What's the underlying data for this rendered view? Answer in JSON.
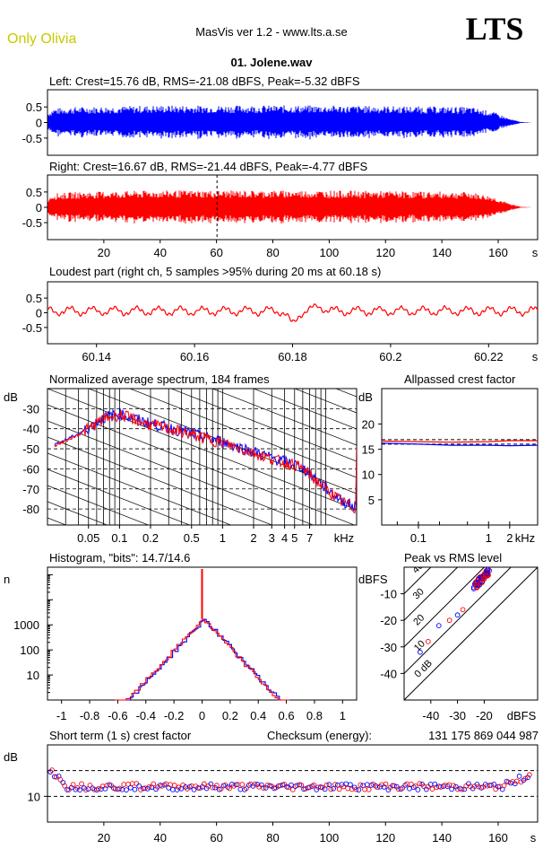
{
  "header": {
    "brand": "Only Olivia",
    "app_title": "MasVis ver 1.2 - www.lts.a.se",
    "logo": "LTS",
    "filename": "01. Jolene.wav"
  },
  "colors": {
    "left": "#0000ff",
    "right": "#ff0000"
  },
  "chart_data": [
    {
      "name": "left-waveform",
      "type": "area",
      "title": "Left: Crest=15.76 dB, RMS=-21.08 dBFS, Peak=-5.32 dBFS",
      "yticks": [
        "0.5",
        "0",
        "-0.5"
      ],
      "ylim": [
        -1,
        1
      ],
      "envelope": [
        [
          0,
          0.3
        ],
        [
          2,
          0.45
        ],
        [
          10,
          0.5
        ],
        [
          40,
          0.55
        ],
        [
          100,
          0.55
        ],
        [
          150,
          0.5
        ],
        [
          158,
          0.35
        ],
        [
          164,
          0.12
        ],
        [
          168,
          0.02
        ],
        [
          172,
          0.0
        ]
      ],
      "xlim": [
        0,
        174
      ]
    },
    {
      "name": "right-waveform",
      "type": "area",
      "title": "Right: Crest=16.67 dB, RMS=-21.44 dBFS, Peak=-4.77 dBFS",
      "yticks": [
        "0.5",
        "0",
        "-0.5"
      ],
      "ylim": [
        -1,
        1
      ],
      "xticks": [
        "20",
        "40",
        "60",
        "80",
        "100",
        "120",
        "140",
        "160",
        "s"
      ],
      "xtick_values": [
        20,
        40,
        60,
        80,
        100,
        120,
        140,
        160
      ],
      "marker_x": 60.18,
      "envelope": [
        [
          0,
          0.3
        ],
        [
          2,
          0.45
        ],
        [
          10,
          0.5
        ],
        [
          40,
          0.55
        ],
        [
          100,
          0.55
        ],
        [
          150,
          0.5
        ],
        [
          158,
          0.35
        ],
        [
          164,
          0.12
        ],
        [
          168,
          0.02
        ],
        [
          172,
          0.0
        ]
      ],
      "xlim": [
        0,
        174
      ]
    },
    {
      "name": "loudest-part",
      "type": "line",
      "title": "Loudest part (right ch, 5 samples >95% during 20 ms at 60.18 s)",
      "yticks": [
        "0.5",
        "0",
        "-0.5"
      ],
      "ylim": [
        -1,
        1
      ],
      "xticks": [
        "60.14",
        "60.16",
        "60.18",
        "60.2",
        "60.22",
        "s"
      ],
      "xtick_values": [
        60.14,
        60.16,
        60.18,
        60.2,
        60.22
      ],
      "xlim": [
        60.13,
        60.23
      ]
    },
    {
      "name": "average-spectrum",
      "type": "line",
      "title": "Normalized average spectrum, 184 frames",
      "ylabel": "dB",
      "yticks": [
        "-30",
        "-40",
        "-50",
        "-60",
        "-70",
        "-80"
      ],
      "ytick_values": [
        -30,
        -40,
        -50,
        -60,
        -70,
        -80
      ],
      "xticks": [
        "0.05",
        "0.1",
        "0.2",
        "0.5",
        "1",
        "2",
        "3",
        "4",
        "5",
        "7",
        "kHz"
      ],
      "xtick_values": [
        0.05,
        0.1,
        0.2,
        0.5,
        1,
        2,
        3,
        4,
        5,
        7
      ],
      "xlim": [
        0.02,
        20
      ],
      "ylim": [
        -88,
        -20
      ],
      "series": [
        {
          "x": [
            0.02,
            0.03,
            0.04,
            0.05,
            0.07,
            0.1,
            0.15,
            0.2,
            0.3,
            0.5,
            0.7,
            1,
            1.5,
            2,
            3,
            4,
            5,
            6,
            7,
            10,
            14,
            20
          ],
          "y": [
            -50,
            -46,
            -43,
            -40,
            -35,
            -33,
            -36,
            -38,
            -40,
            -43,
            -45,
            -47,
            -50,
            -52,
            -55,
            -57,
            -58,
            -60,
            -63,
            -70,
            -76,
            -80
          ]
        }
      ]
    },
    {
      "name": "allpassed-crest-factor",
      "type": "line",
      "title": "Allpassed crest factor",
      "ylabel": "dB",
      "yticks": [
        "20",
        "15",
        "10",
        "5"
      ],
      "ytick_values": [
        20,
        15,
        10,
        5
      ],
      "xticks": [
        "0.1",
        "1",
        "2",
        "kHz"
      ],
      "xtick_values": [
        0.1,
        1,
        2
      ],
      "xlim": [
        0.03,
        5
      ],
      "ylim": [
        0,
        27
      ],
      "series": [
        {
          "name": "left",
          "x": [
            0.03,
            0.1,
            0.3,
            1,
            2,
            5
          ],
          "y": [
            16.2,
            16.0,
            15.8,
            15.8,
            15.7,
            15.8
          ]
        },
        {
          "name": "right",
          "x": [
            0.03,
            0.1,
            0.3,
            1,
            2,
            5
          ],
          "y": [
            16.6,
            16.5,
            16.4,
            16.5,
            16.7,
            16.7
          ]
        }
      ]
    },
    {
      "name": "histogram",
      "type": "line",
      "title": "Histogram, \"bits\": 14.7/14.6",
      "ylabel": "n",
      "yticks": [
        "1000",
        "100",
        "10"
      ],
      "ytick_values": [
        1000,
        100,
        10
      ],
      "xticks": [
        "-1",
        "-0.8",
        "-0.6",
        "-0.4",
        "-0.2",
        "0",
        "0.2",
        "0.4",
        "0.6",
        "0.8",
        "1"
      ],
      "xtick_values": [
        -1,
        -0.8,
        -0.6,
        -0.4,
        -0.2,
        0,
        0.2,
        0.4,
        0.6,
        0.8,
        1
      ],
      "xlim": [
        -1.1,
        1.1
      ],
      "ylim": [
        1,
        200000
      ],
      "peak": 1700,
      "spike": 150000
    },
    {
      "name": "peak-vs-rms",
      "type": "scatter",
      "title": "Peak vs RMS level",
      "ylabel": "dBFS",
      "yticks": [
        "-10",
        "-20",
        "-30",
        "-40"
      ],
      "ytick_values": [
        -10,
        -20,
        -30,
        -40
      ],
      "xticks": [
        "-40",
        "-30",
        "-20",
        "dBFS"
      ],
      "xtick_values": [
        -40,
        -30,
        -20
      ],
      "xlim": [
        -50,
        0
      ],
      "ylim": [
        -50,
        0
      ],
      "crest_lines": [
        "40",
        "30",
        "20",
        "10",
        "0 dB"
      ],
      "crest_values": [
        40,
        30,
        20,
        10,
        0
      ]
    },
    {
      "name": "short-term-crest",
      "type": "scatter",
      "title": "Short term (1 s) crest factor",
      "checksum_label": "Checksum (energy):",
      "checksum_value": "131 175 869 044 987",
      "ylabel": "dB",
      "yticks": [
        "10"
      ],
      "ytick_values": [
        10
      ],
      "xticks": [
        "20",
        "40",
        "60",
        "80",
        "100",
        "120",
        "140",
        "160",
        "s"
      ],
      "xtick_values": [
        20,
        40,
        60,
        80,
        100,
        120,
        140,
        160
      ],
      "xlim": [
        0,
        174
      ],
      "ylim": [
        0,
        30
      ],
      "dashed_levels": [
        10,
        20
      ]
    }
  ]
}
